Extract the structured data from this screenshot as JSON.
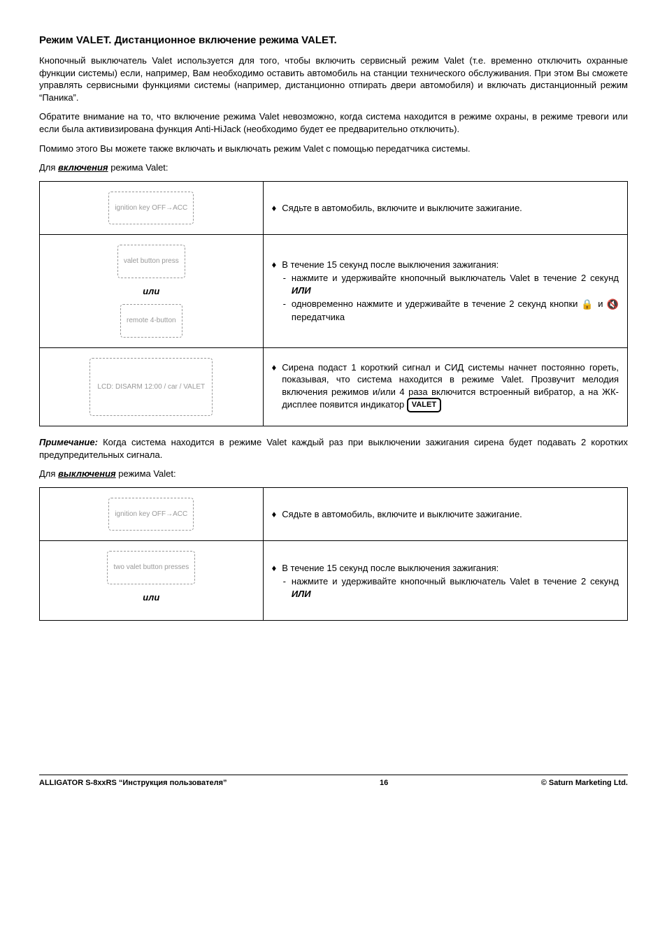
{
  "heading": "Режим VALET. Дистанционное включение режима VALET.",
  "para1": "Кнопочный выключатель Valet используется для того, чтобы включить сервисный режим Valet (т.е. временно отключить охранные функции системы) если, например, Вам необходимо оставить автомобиль на станции технического обслуживания. При этом Вы сможете управлять сервисными функциями системы (например, дистанционно отпирать двери автомобиля) и включать дистанционный режим “Паника”.",
  "para2": "Обратите внимание на то, что включение режима Valet невозможно, когда система находится в режиме охраны, в режиме тревоги или если была активизирована функция Anti-HiJack (необходимо будет ее предварительно отключить).",
  "para3": "Помимо этого Вы можете также включать и выключать режим Valet с помощью передатчика системы.",
  "enable_label_prefix": "Для ",
  "enable_label_bu": "включения",
  "enable_label_suffix": " режима Valet:",
  "or_word": "или",
  "t1r1_right": "Сядьте в автомобиль, включите и выключите зажигание.",
  "t1r2_b1": "В течение 15 секунд после выключения зажигания:",
  "t1r2_s1_a": "нажмите и удерживайте кнопочный выключатель Valet в течение 2 секунд ",
  "t1r2_s1_b": "ИЛИ",
  "t1r2_s2_a": "одновременно нажмите и удерживайте в течение 2 секунд кнопки ",
  "t1r2_s2_b": " и ",
  "t1r2_s2_c": " передатчика",
  "t1r3_a": "Сирена подаст 1 короткий сигнал и СИД системы начнет постоянно гореть,  показывая, что система находится в режиме Valet. Прозвучит мелодия включения режимов и/или 4 раза включится встроенный вибратор, а на ЖК-дисплее появится индикатор ",
  "valet_badge": "VALET",
  "note_label": "Примечание:",
  "note_text": " Когда система находится в режиме Valet каждый раз при выключении зажигания сирена будет подавать 2 коротких предупредительных сигнала.",
  "disable_label_prefix": "Для ",
  "disable_label_bu": "выключения",
  "disable_label_suffix": " режима Valet:",
  "t2r1_right": "Сядьте в автомобиль, включите и выключите зажигание.",
  "t2r2_b1": "В течение 15 секунд после выключения зажигания:",
  "t2r2_s1_a": "нажмите и удерживайте кнопочный выключатель Valet в течение 2 секунд ",
  "t2r2_s1_b": "ИЛИ",
  "footer_left": "ALLIGATOR S-8xxRS “Инструкция пользователя”",
  "footer_center": "16",
  "footer_right": "© Saturn Marketing Ltd.",
  "ph_ignition": "ignition key OFF→ACC",
  "ph_valet_button": "valet button press",
  "ph_remote": "remote 4-button",
  "ph_lcd": "LCD: DISARM 12:00 / car / VALET",
  "ph_two_valet": "two valet button presses"
}
